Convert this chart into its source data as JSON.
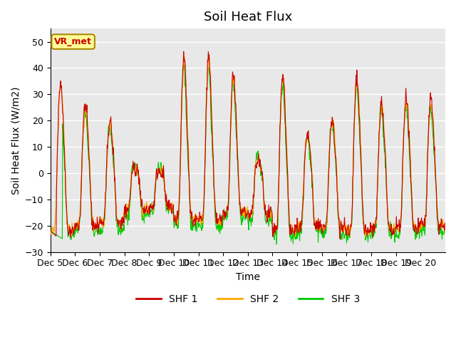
{
  "title": "Soil Heat Flux",
  "xlabel": "Time",
  "ylabel": "Soil Heat Flux (W/m2)",
  "ylim": [
    -30,
    55
  ],
  "yticks": [
    -30,
    -20,
    -10,
    0,
    10,
    20,
    30,
    40,
    50
  ],
  "xlim": [
    0,
    960
  ],
  "n_days": 16,
  "pts_per_day": 60,
  "xtick_labels": [
    "Dec 5",
    "Dec 6",
    "Dec 7",
    "Dec 8",
    "Dec 9",
    "Dec 10",
    "Dec 11",
    "Dec 12",
    "Dec 13",
    "Dec 14",
    "Dec 15",
    "Dec 16",
    "Dec 17",
    "Dec 18",
    "Dec 19",
    "Dec 20"
  ],
  "legend_labels": [
    "SHF 1",
    "SHF 2",
    "SHF 3"
  ],
  "shf1_color": "#cc0000",
  "shf2_color": "#ffaa00",
  "shf3_color": "#00cc00",
  "background_color": "#e8e8e8",
  "annotation_text": "VR_met",
  "annotation_color": "#cc0000",
  "annotation_bg": "#ffff99",
  "annotation_edge": "#aa8800",
  "title_fontsize": 13,
  "axis_label_fontsize": 10,
  "tick_fontsize": 9,
  "shf1_peaks": [
    35,
    26,
    20,
    2,
    1,
    45,
    45,
    39,
    5,
    37,
    15,
    21,
    37,
    27,
    29,
    28
  ],
  "shf1_base": [
    -22,
    -20,
    -19,
    -14,
    -13,
    -18,
    -18,
    -15,
    -16,
    -22,
    -20,
    -21,
    -22,
    -21,
    -21,
    -20
  ]
}
